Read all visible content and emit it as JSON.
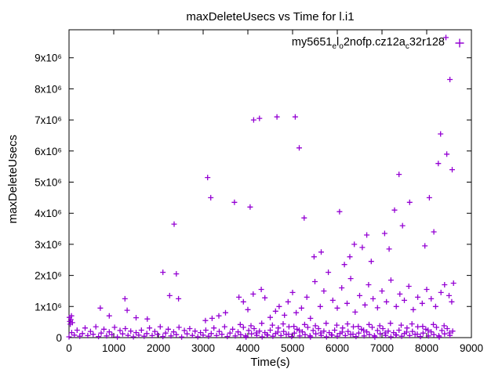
{
  "chart_data": {
    "type": "scatter",
    "title": "maxDeleteUsecs vs Time for l.i1",
    "xlabel": "Time(s)",
    "ylabel": "maxDeleteUsecs",
    "xlim": [
      0,
      9000
    ],
    "ylim": [
      0,
      9900000
    ],
    "grid": false,
    "legend_position": "top-right-inside",
    "marker": {
      "shape": "plus",
      "color": "#9400d3"
    },
    "xticks": {
      "values": [
        0,
        1000,
        2000,
        3000,
        4000,
        5000,
        6000,
        7000,
        8000,
        9000
      ],
      "labels": [
        "0",
        "1000",
        "2000",
        "3000",
        "4000",
        "5000",
        "6000",
        "7000",
        "8000",
        "9000"
      ]
    },
    "yticks": {
      "values": [
        0,
        1000000,
        2000000,
        3000000,
        4000000,
        5000000,
        6000000,
        7000000,
        8000000,
        9000000
      ],
      "labels": [
        "0",
        "1x10⁶",
        "2x10⁶",
        "3x10⁶",
        "4x10⁶",
        "5x10⁶",
        "6x10⁶",
        "7x10⁶",
        "8x10⁶",
        "9x10⁶"
      ]
    },
    "legend": {
      "parts": [
        {
          "text": "my5651"
        },
        {
          "text": "e",
          "sub": true
        },
        {
          "text": "l"
        },
        {
          "text": "o",
          "sub": true
        },
        {
          "text": "2nofp.cz12a"
        },
        {
          "text": "c",
          "sub": true
        },
        {
          "text": "32r128"
        }
      ]
    },
    "series": [
      {
        "name": "my5651_el_o2nofp.cz12a_c32r128",
        "points": [
          [
            0,
            25000
          ],
          [
            60,
            160000
          ],
          [
            120,
            80000
          ],
          [
            180,
            240000
          ],
          [
            240,
            45000
          ],
          [
            300,
            130000
          ],
          [
            360,
            310000
          ],
          [
            420,
            65000
          ],
          [
            480,
            200000
          ],
          [
            540,
            105000
          ],
          [
            600,
            350000
          ],
          [
            660,
            35000
          ],
          [
            720,
            145000
          ],
          [
            780,
            270000
          ],
          [
            840,
            55000
          ],
          [
            900,
            185000
          ],
          [
            960,
            95000
          ],
          [
            1020,
            330000
          ],
          [
            1080,
            20000
          ],
          [
            1140,
            230000
          ],
          [
            1200,
            120000
          ],
          [
            1260,
            290000
          ],
          [
            1320,
            70000
          ],
          [
            1380,
            210000
          ],
          [
            1440,
            25000
          ],
          [
            1500,
            160000
          ],
          [
            1560,
            80000
          ],
          [
            1620,
            240000
          ],
          [
            1680,
            45000
          ],
          [
            1740,
            130000
          ],
          [
            1800,
            310000
          ],
          [
            1860,
            65000
          ],
          [
            1920,
            200000
          ],
          [
            1980,
            105000
          ],
          [
            2040,
            350000
          ],
          [
            2100,
            35000
          ],
          [
            2160,
            145000
          ],
          [
            2220,
            270000
          ],
          [
            2280,
            55000
          ],
          [
            2340,
            185000
          ],
          [
            2400,
            95000
          ],
          [
            2460,
            330000
          ],
          [
            2520,
            20000
          ],
          [
            2580,
            230000
          ],
          [
            2640,
            120000
          ],
          [
            2700,
            290000
          ],
          [
            2760,
            70000
          ],
          [
            2820,
            210000
          ],
          [
            2880,
            25000
          ],
          [
            2940,
            160000
          ],
          [
            3000,
            80000
          ],
          [
            3060,
            240000
          ],
          [
            3120,
            45000
          ],
          [
            3180,
            130000
          ],
          [
            3240,
            310000
          ],
          [
            3300,
            65000
          ],
          [
            3360,
            200000
          ],
          [
            3420,
            105000
          ],
          [
            3480,
            350000
          ],
          [
            3540,
            35000
          ],
          [
            3600,
            145000
          ],
          [
            3660,
            270000
          ],
          [
            3720,
            55000
          ],
          [
            3780,
            185000
          ],
          [
            3840,
            95000
          ],
          [
            3900,
            330000
          ],
          [
            3960,
            20000
          ],
          [
            4020,
            230000
          ],
          [
            4080,
            120000
          ],
          [
            4140,
            290000
          ],
          [
            4200,
            70000
          ],
          [
            4260,
            210000
          ],
          [
            4320,
            25000
          ],
          [
            4380,
            160000
          ],
          [
            4440,
            80000
          ],
          [
            4500,
            240000
          ],
          [
            4560,
            45000
          ],
          [
            4620,
            130000
          ],
          [
            4680,
            310000
          ],
          [
            4740,
            65000
          ],
          [
            4800,
            200000
          ],
          [
            4860,
            105000
          ],
          [
            4920,
            350000
          ],
          [
            4980,
            35000
          ],
          [
            5040,
            145000
          ],
          [
            5100,
            270000
          ],
          [
            5160,
            55000
          ],
          [
            5220,
            185000
          ],
          [
            5280,
            95000
          ],
          [
            5340,
            330000
          ],
          [
            5400,
            20000
          ],
          [
            5460,
            230000
          ],
          [
            5520,
            120000
          ],
          [
            5580,
            290000
          ],
          [
            5640,
            70000
          ],
          [
            5700,
            210000
          ],
          [
            5760,
            25000
          ],
          [
            5820,
            160000
          ],
          [
            5880,
            80000
          ],
          [
            5940,
            240000
          ],
          [
            6000,
            45000
          ],
          [
            6060,
            130000
          ],
          [
            6120,
            310000
          ],
          [
            6180,
            65000
          ],
          [
            6240,
            200000
          ],
          [
            6300,
            105000
          ],
          [
            6360,
            350000
          ],
          [
            6420,
            35000
          ],
          [
            6480,
            145000
          ],
          [
            6540,
            270000
          ],
          [
            6600,
            55000
          ],
          [
            6660,
            185000
          ],
          [
            6720,
            95000
          ],
          [
            6780,
            330000
          ],
          [
            6840,
            20000
          ],
          [
            6900,
            230000
          ],
          [
            6960,
            120000
          ],
          [
            7020,
            290000
          ],
          [
            7080,
            70000
          ],
          [
            7140,
            210000
          ],
          [
            7200,
            25000
          ],
          [
            7260,
            160000
          ],
          [
            7320,
            80000
          ],
          [
            7380,
            240000
          ],
          [
            7440,
            45000
          ],
          [
            7500,
            130000
          ],
          [
            7560,
            310000
          ],
          [
            7620,
            65000
          ],
          [
            7680,
            200000
          ],
          [
            7740,
            105000
          ],
          [
            7800,
            350000
          ],
          [
            7860,
            35000
          ],
          [
            7920,
            145000
          ],
          [
            7980,
            270000
          ],
          [
            8040,
            55000
          ],
          [
            8100,
            185000
          ],
          [
            8160,
            95000
          ],
          [
            8220,
            330000
          ],
          [
            8280,
            20000
          ],
          [
            8340,
            230000
          ],
          [
            8400,
            120000
          ],
          [
            8460,
            290000
          ],
          [
            8520,
            70000
          ],
          [
            8580,
            210000
          ],
          [
            3830,
            420000
          ],
          [
            3950,
            60000
          ],
          [
            4070,
            380000
          ],
          [
            4190,
            150000
          ],
          [
            4310,
            460000
          ],
          [
            4430,
            90000
          ],
          [
            4550,
            400000
          ],
          [
            4670,
            180000
          ],
          [
            4790,
            440000
          ],
          [
            4910,
            110000
          ],
          [
            5030,
            360000
          ],
          [
            5150,
            240000
          ],
          [
            5270,
            420000
          ],
          [
            5390,
            60000
          ],
          [
            5510,
            380000
          ],
          [
            5630,
            150000
          ],
          [
            5750,
            460000
          ],
          [
            5870,
            90000
          ],
          [
            5990,
            400000
          ],
          [
            6110,
            180000
          ],
          [
            6230,
            440000
          ],
          [
            6350,
            110000
          ],
          [
            6470,
            360000
          ],
          [
            6590,
            240000
          ],
          [
            6710,
            420000
          ],
          [
            6830,
            60000
          ],
          [
            6950,
            380000
          ],
          [
            7070,
            150000
          ],
          [
            7190,
            460000
          ],
          [
            7310,
            90000
          ],
          [
            7430,
            400000
          ],
          [
            7550,
            180000
          ],
          [
            7670,
            440000
          ],
          [
            7790,
            110000
          ],
          [
            7910,
            360000
          ],
          [
            8030,
            240000
          ],
          [
            8150,
            420000
          ],
          [
            8270,
            60000
          ],
          [
            8390,
            380000
          ],
          [
            8510,
            150000
          ],
          [
            10,
            650000
          ],
          [
            18,
            520000
          ],
          [
            28,
            430000
          ],
          [
            40,
            580000
          ],
          [
            55,
            700000
          ],
          [
            75,
            480000
          ],
          [
            700,
            950000
          ],
          [
            900,
            700000
          ],
          [
            1250,
            1250000
          ],
          [
            1300,
            880000
          ],
          [
            1500,
            640000
          ],
          [
            1750,
            600000
          ],
          [
            2100,
            2100000
          ],
          [
            2250,
            1350000
          ],
          [
            2400,
            2050000
          ],
          [
            2450,
            1250000
          ],
          [
            3050,
            550000
          ],
          [
            3200,
            620000
          ],
          [
            3350,
            700000
          ],
          [
            3500,
            800000
          ],
          [
            3800,
            1300000
          ],
          [
            3900,
            1150000
          ],
          [
            4000,
            900000
          ],
          [
            4120,
            1400000
          ],
          [
            4300,
            1550000
          ],
          [
            4380,
            1280000
          ],
          [
            4500,
            650000
          ],
          [
            4620,
            850000
          ],
          [
            4700,
            1000000
          ],
          [
            4820,
            720000
          ],
          [
            4900,
            1150000
          ],
          [
            5000,
            1450000
          ],
          [
            5080,
            800000
          ],
          [
            5200,
            950000
          ],
          [
            5320,
            1300000
          ],
          [
            5400,
            620000
          ],
          [
            5500,
            1800000
          ],
          [
            5620,
            1000000
          ],
          [
            5700,
            1500000
          ],
          [
            5800,
            2100000
          ],
          [
            5900,
            1200000
          ],
          [
            6000,
            950000
          ],
          [
            6100,
            1600000
          ],
          [
            6220,
            1100000
          ],
          [
            6300,
            1900000
          ],
          [
            6400,
            820000
          ],
          [
            6500,
            1350000
          ],
          [
            6620,
            1050000
          ],
          [
            6700,
            1700000
          ],
          [
            6800,
            1250000
          ],
          [
            6900,
            960000
          ],
          [
            7000,
            1500000
          ],
          [
            7100,
            1150000
          ],
          [
            7200,
            1850000
          ],
          [
            7320,
            1000000
          ],
          [
            7400,
            1400000
          ],
          [
            7500,
            1200000
          ],
          [
            7600,
            1650000
          ],
          [
            7700,
            900000
          ],
          [
            7800,
            1300000
          ],
          [
            7900,
            1100000
          ],
          [
            8000,
            1550000
          ],
          [
            8100,
            1250000
          ],
          [
            8200,
            1000000
          ],
          [
            8320,
            1450000
          ],
          [
            8400,
            1700000
          ],
          [
            8500,
            1350000
          ],
          [
            8560,
            1150000
          ],
          [
            8600,
            1750000
          ],
          [
            2350,
            3650000
          ],
          [
            3100,
            5150000
          ],
          [
            3170,
            4500000
          ],
          [
            3700,
            4350000
          ],
          [
            4050,
            4200000
          ],
          [
            4130,
            7000000
          ],
          [
            4260,
            7050000
          ],
          [
            4650,
            7100000
          ],
          [
            5060,
            7100000
          ],
          [
            5150,
            6100000
          ],
          [
            5260,
            3850000
          ],
          [
            5480,
            2600000
          ],
          [
            5640,
            2750000
          ],
          [
            6050,
            4050000
          ],
          [
            6160,
            2350000
          ],
          [
            6280,
            2600000
          ],
          [
            6380,
            3000000
          ],
          [
            6560,
            2900000
          ],
          [
            6660,
            3300000
          ],
          [
            6760,
            2450000
          ],
          [
            7060,
            3350000
          ],
          [
            7160,
            2850000
          ],
          [
            7280,
            4100000
          ],
          [
            7380,
            5250000
          ],
          [
            7460,
            3600000
          ],
          [
            7620,
            4350000
          ],
          [
            7960,
            2950000
          ],
          [
            8060,
            4500000
          ],
          [
            8160,
            3400000
          ],
          [
            8260,
            5600000
          ],
          [
            8310,
            6550000
          ],
          [
            8450,
            5900000
          ],
          [
            8430,
            9650000
          ],
          [
            8520,
            8300000
          ],
          [
            8570,
            5400000
          ]
        ]
      }
    ]
  }
}
